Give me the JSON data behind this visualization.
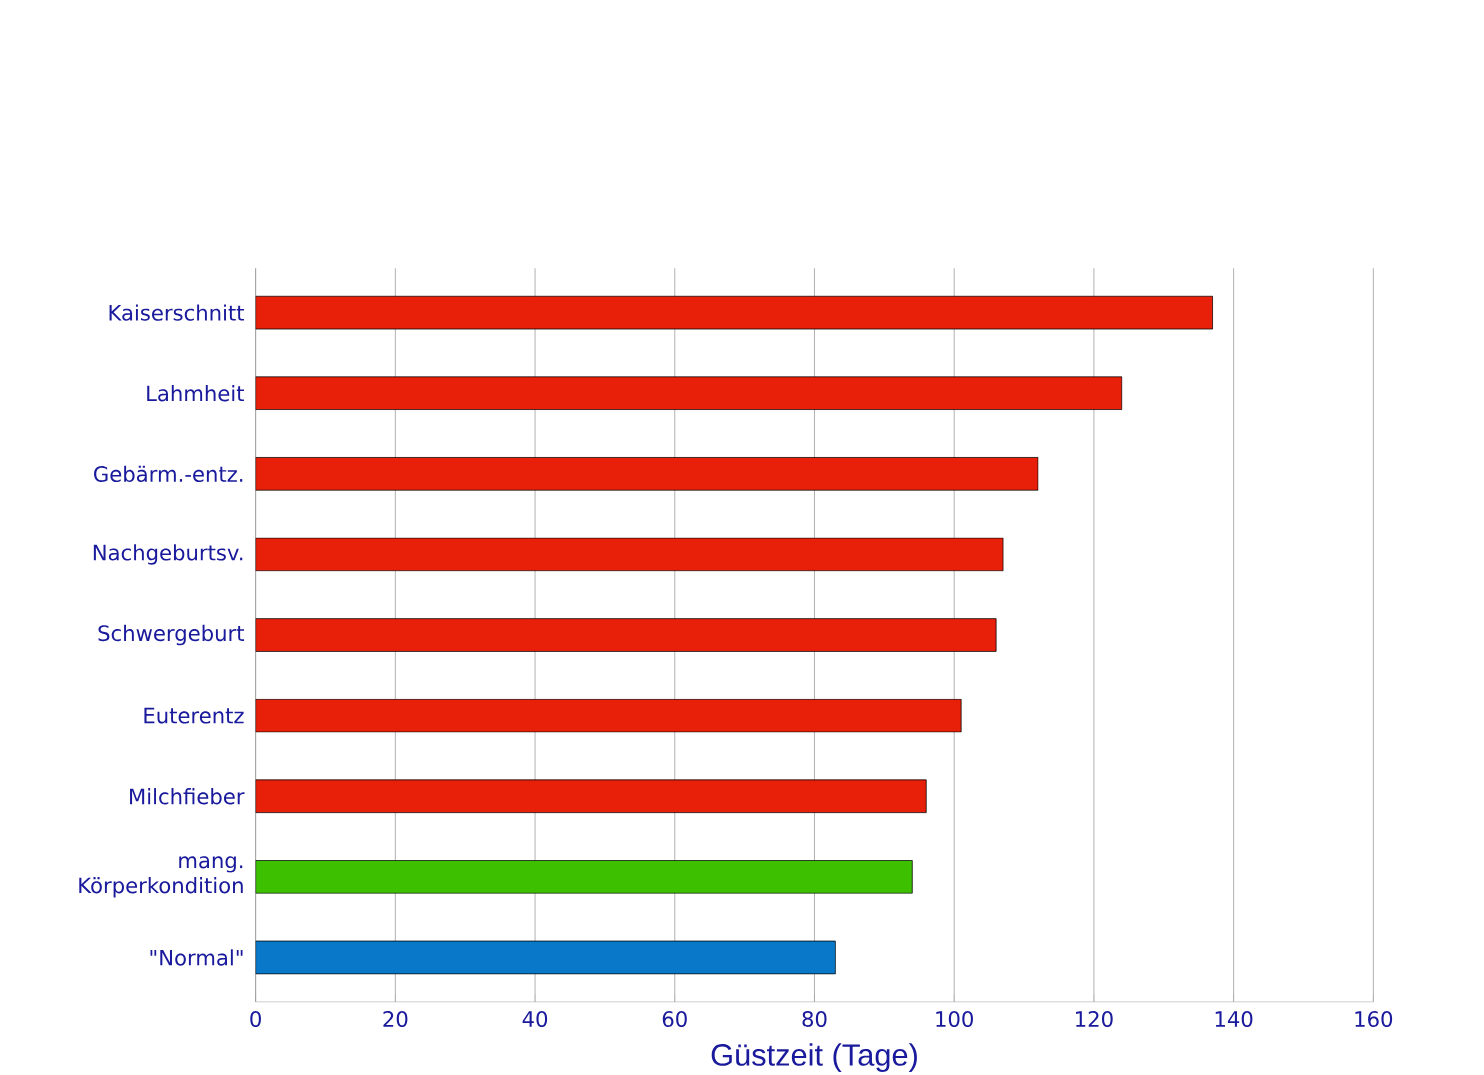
{
  "chart_data": {
    "type": "bar",
    "orientation": "horizontal",
    "xlabel": "Güstzeit (Tage)",
    "categories": [
      "Kaiserschnitt",
      "Lahmheit",
      "Gebärm.-entz.",
      "Nachgeburtsv.",
      "Schwergeburt",
      "Euterentz",
      "Milchfieber",
      "mang. Körperkondition",
      "\"Normal\""
    ],
    "values": [
      137,
      124,
      112,
      107,
      106,
      101,
      96,
      94,
      83
    ],
    "colors": [
      "#e8200a",
      "#e8200a",
      "#e8200a",
      "#e8200a",
      "#e8200a",
      "#e8200a",
      "#e8200a",
      "#3cc000",
      "#0a78c8"
    ],
    "xlim": [
      0,
      160
    ],
    "xticks": [
      0,
      20,
      40,
      60,
      80,
      100,
      120,
      140,
      160
    ],
    "grid": "x"
  }
}
